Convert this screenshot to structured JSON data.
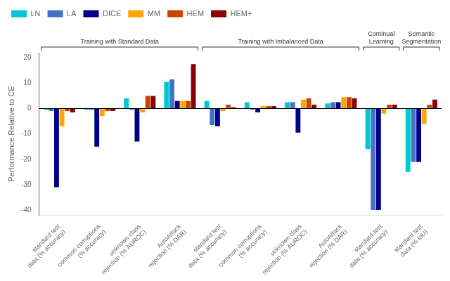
{
  "chart_data": {
    "type": "bar",
    "categories": [
      "standard test\ndata (% accuracy)",
      "common corruptions\n(% accuracy)",
      "unknown class\nrejection (% AUROC)",
      "AutoAttack\nrejection (% DAR)",
      "standard test\ndata (% accuracy)",
      "common corruptions\n(% accuracy)",
      "unknown class\nrejection (% AUROC)",
      "AutoAttack\nrejection (% DAR)",
      "standard test\ndata (% accuracy)",
      "standard test\ndata (% IoU)"
    ],
    "series": [
      {
        "name": "LN",
        "color": "#00c8d0",
        "values": [
          -0.5,
          -0.5,
          4.0,
          10.5,
          3.0,
          2.5,
          2.5,
          2.0,
          -16.0,
          -25.0
        ]
      },
      {
        "name": "LA",
        "color": "#4472c4",
        "values": [
          -1.0,
          -0.5,
          -0.5,
          11.5,
          -6.5,
          -0.5,
          2.5,
          2.5,
          -40.0,
          -21.0
        ]
      },
      {
        "name": "DICE",
        "color": "#00008b",
        "values": [
          -31.0,
          -15.0,
          -13.0,
          3.0,
          -7.0,
          -1.5,
          -9.5,
          2.5,
          -40.0,
          -21.0
        ]
      },
      {
        "name": "MM",
        "color": "#ffa500",
        "values": [
          -7.0,
          -3.0,
          -1.5,
          3.0,
          -1.0,
          1.0,
          3.5,
          4.5,
          -2.0,
          -6.0
        ]
      },
      {
        "name": "HEM",
        "color": "#cc4400",
        "values": [
          -1.0,
          -1.0,
          5.0,
          3.0,
          1.5,
          1.0,
          4.0,
          4.5,
          1.5,
          1.5
        ]
      },
      {
        "name": "HEM+",
        "color": "#8b0000",
        "values": [
          -1.5,
          -1.0,
          5.0,
          17.5,
          0.5,
          1.0,
          1.5,
          4.0,
          1.5,
          3.5
        ]
      }
    ],
    "annotations": [
      {
        "text": "Training with Standard Data",
        "from": 0,
        "to": 3
      },
      {
        "text": "Training with Imbalanced Data",
        "from": 4,
        "to": 7
      },
      {
        "text": "Continual\nLearning",
        "from": 8,
        "to": 8
      },
      {
        "text": "Semantic\nSegmentation",
        "from": 9,
        "to": 9
      }
    ],
    "ylabel": "Performance Relative to CE",
    "ylim": [
      -42,
      22
    ],
    "yticks": [
      -40,
      -30,
      -20,
      -10,
      0,
      10,
      20
    ],
    "grid": false,
    "legend": "upper left"
  }
}
